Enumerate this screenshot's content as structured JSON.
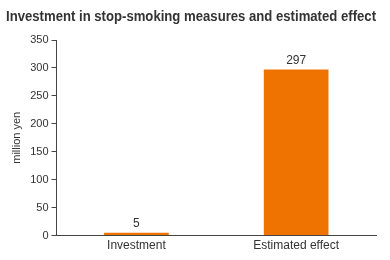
{
  "chart_data": {
    "type": "bar",
    "title": "Investment in stop-smoking measures and estimated effect",
    "ylabel": "million yen",
    "categories": [
      "Investment",
      "Estimated effect"
    ],
    "values": [
      5,
      297
    ],
    "color": "#ef7300",
    "ylim": [
      0,
      350
    ],
    "yticks": [
      0,
      50,
      100,
      150,
      200,
      250,
      300,
      350
    ],
    "grid": false,
    "data_labels": true
  }
}
